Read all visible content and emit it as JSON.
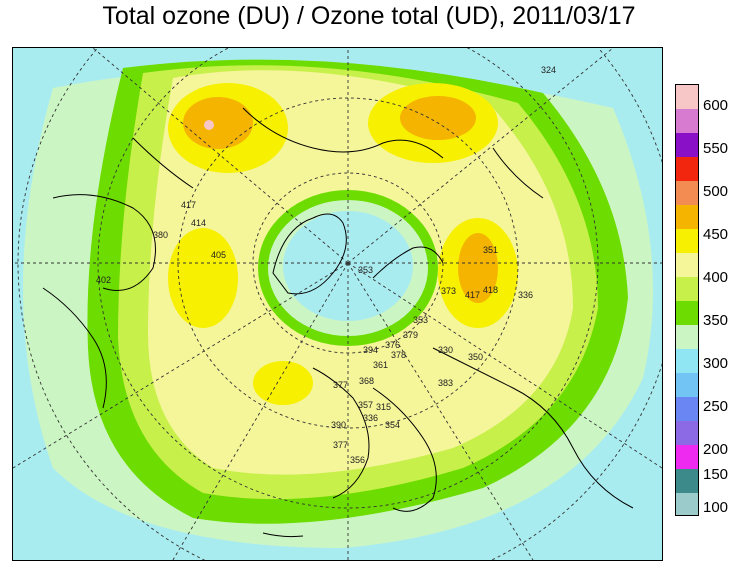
{
  "title": "Total ozone (DU) / Ozone total (UD), 2011/03/17",
  "colorbar": {
    "levels": [
      {
        "value": "600",
        "color": "#f7c6c6"
      },
      {
        "value": "550",
        "color": "#d77bd0"
      },
      {
        "value": "500",
        "color": "#8a10c8"
      },
      {
        "value": "450",
        "color": "#f2260f"
      },
      {
        "value": "400",
        "color": "#f28c52"
      },
      {
        "value": "350",
        "color": "#f4b400"
      },
      {
        "value": "300",
        "color": "#f7f000"
      },
      {
        "value": "250",
        "color": "#f5f59a"
      },
      {
        "value": "200",
        "color": "#c8f04a"
      },
      {
        "value": "150",
        "color": "#6ddc00"
      },
      {
        "value": "100",
        "color": "#ccf5c4"
      }
    ],
    "extra_segments": [
      {
        "color": "#90e6f2"
      },
      {
        "color": "#72c4f4"
      },
      {
        "color": "#6a86f2"
      },
      {
        "color": "#8c6ae6"
      },
      {
        "color": "#ee2af0"
      },
      {
        "color": "#3d8a8a"
      },
      {
        "color": "#9bcbcb"
      }
    ]
  },
  "labels": {
    "tick_labels": [
      "600",
      "550",
      "500",
      "450",
      "400",
      "350",
      "300",
      "250",
      "200",
      "150",
      "100"
    ]
  },
  "station_values": [
    "417",
    "414",
    "380",
    "402",
    "405",
    "373",
    "418",
    "417",
    "336",
    "330",
    "383",
    "350",
    "353",
    "377",
    "368",
    "357",
    "315",
    "336",
    "354",
    "390",
    "377",
    "356",
    "394",
    "361",
    "376",
    "378",
    "379",
    "353",
    "351",
    "324"
  ]
}
